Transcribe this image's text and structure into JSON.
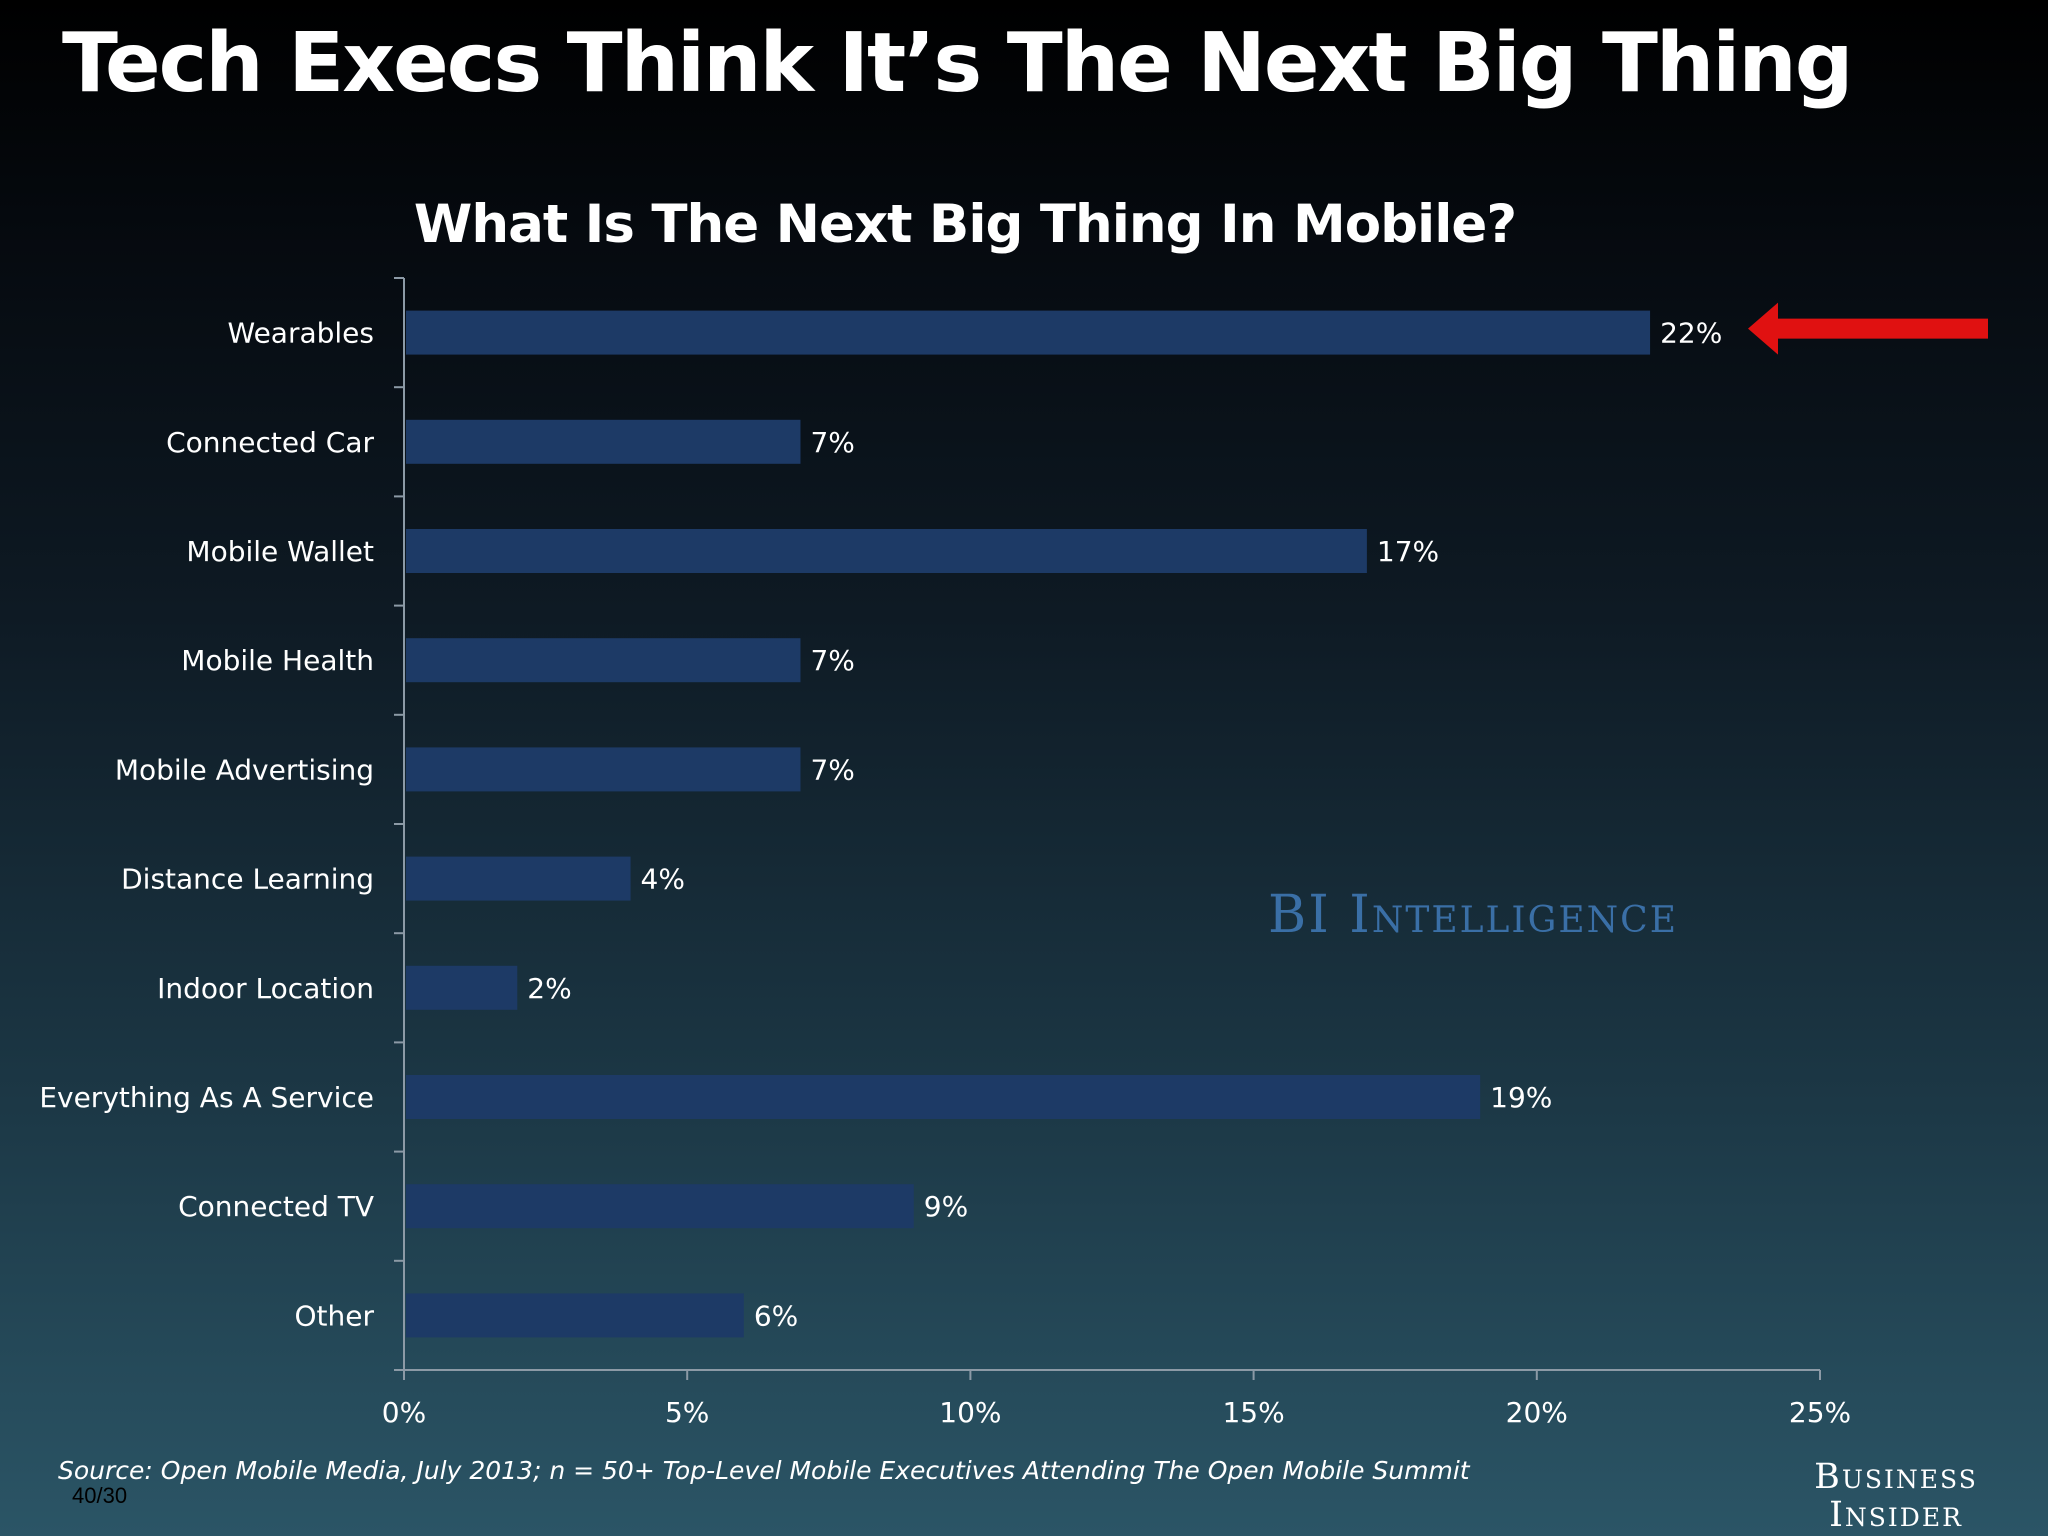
{
  "slide": {
    "title": "Tech Execs Think It’s The Next Big Thing",
    "page_counter": "40/30"
  },
  "chart_data": {
    "type": "bar",
    "orientation": "horizontal",
    "title": "What Is The Next Big Thing In Mobile?",
    "categories": [
      "Wearables",
      "Connected Car",
      "Mobile Wallet",
      "Mobile Health",
      "Mobile Advertising",
      "Distance Learning",
      "Indoor Location",
      "Everything As A Service",
      "Connected TV",
      "Other"
    ],
    "values": [
      22,
      7,
      17,
      7,
      7,
      4,
      2,
      19,
      9,
      6
    ],
    "data_labels": [
      "22%",
      "7%",
      "17%",
      "7%",
      "7%",
      "4%",
      "2%",
      "19%",
      "9%",
      "6%"
    ],
    "xlim": [
      0,
      25
    ],
    "xticks": [
      0,
      5,
      10,
      15,
      20,
      25
    ],
    "xtick_labels": [
      "0%",
      "5%",
      "10%",
      "15%",
      "20%",
      "25%"
    ],
    "xlabel": "",
    "ylabel": "",
    "grid": false,
    "legend": "none",
    "highlight": "Wearables",
    "bar_color": "#1d3a66",
    "axis_color": "#8c9aa6",
    "arrow_color": "#e01111"
  },
  "watermark": {
    "text": "BI Intelligence",
    "color": "#3a6fa6"
  },
  "footer": {
    "source": "Source: Open Mobile Media, July 2013; n = 50+ Top-Level Mobile Executives Attending The Open Mobile Summit",
    "logo_line1": "Business",
    "logo_line2": "Insider"
  }
}
